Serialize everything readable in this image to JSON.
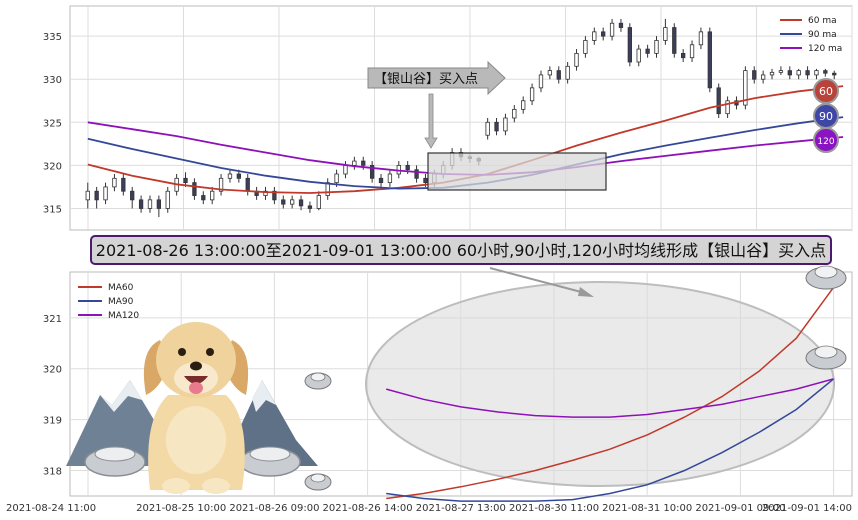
{
  "chart_data": [
    {
      "type": "candlestick",
      "legend": [
        {
          "name": "60 ma",
          "color": "#c0392b"
        },
        {
          "name": "90 ma",
          "color": "#34489a"
        },
        {
          "name": "120 ma",
          "color": "#8e10b8"
        }
      ],
      "yticks": [
        315,
        320,
        325,
        330,
        335
      ],
      "ylim": [
        312.5,
        338.5
      ],
      "grid": true,
      "legend_position": "top-right",
      "callout_label": "【银山谷】买入点",
      "badges": [
        "60",
        "90",
        "120"
      ],
      "ma60": [
        [
          0,
          320.1
        ],
        [
          10,
          318.8
        ],
        [
          20,
          317.8
        ],
        [
          30,
          317.2
        ],
        [
          40,
          316.9
        ],
        [
          50,
          316.8
        ],
        [
          60,
          317.0
        ],
        [
          70,
          317.4
        ],
        [
          80,
          318.0
        ],
        [
          90,
          319.0
        ],
        [
          100,
          320.6
        ],
        [
          110,
          322.3
        ],
        [
          120,
          323.8
        ],
        [
          130,
          325.2
        ],
        [
          140,
          326.7
        ],
        [
          150,
          327.8
        ],
        [
          160,
          328.6
        ],
        [
          170,
          329.2
        ]
      ],
      "ma90": [
        [
          0,
          323.1
        ],
        [
          10,
          321.9
        ],
        [
          20,
          320.8
        ],
        [
          30,
          319.7
        ],
        [
          40,
          318.8
        ],
        [
          50,
          318.1
        ],
        [
          60,
          317.6
        ],
        [
          70,
          317.3
        ],
        [
          80,
          317.4
        ],
        [
          90,
          318.0
        ],
        [
          100,
          318.9
        ],
        [
          110,
          320.1
        ],
        [
          120,
          321.3
        ],
        [
          130,
          322.3
        ],
        [
          140,
          323.2
        ],
        [
          150,
          324.1
        ],
        [
          160,
          324.9
        ],
        [
          170,
          325.6
        ]
      ],
      "ma120": [
        [
          0,
          325.0
        ],
        [
          10,
          324.2
        ],
        [
          20,
          323.4
        ],
        [
          30,
          322.4
        ],
        [
          40,
          321.5
        ],
        [
          50,
          320.6
        ],
        [
          60,
          319.9
        ],
        [
          70,
          319.4
        ],
        [
          80,
          319.0
        ],
        [
          90,
          318.9
        ],
        [
          100,
          319.2
        ],
        [
          110,
          319.8
        ],
        [
          120,
          320.5
        ],
        [
          130,
          321.1
        ],
        [
          140,
          321.7
        ],
        [
          150,
          322.3
        ],
        [
          160,
          322.8
        ],
        [
          170,
          323.3
        ]
      ],
      "candles": [
        [
          0,
          316,
          317,
          315,
          318
        ],
        [
          2,
          317,
          316,
          315,
          317.5
        ],
        [
          4,
          316,
          317.5,
          315.5,
          318
        ],
        [
          6,
          317.5,
          318.5,
          317,
          319
        ],
        [
          8,
          318.5,
          317,
          316.5,
          319
        ],
        [
          10,
          317,
          316,
          315,
          317.5
        ],
        [
          12,
          316,
          315,
          314.5,
          316.5
        ],
        [
          14,
          315,
          316,
          314.5,
          316.5
        ],
        [
          16,
          316,
          315,
          314,
          316.5
        ],
        [
          18,
          315,
          317,
          314.5,
          317.5
        ],
        [
          20,
          317,
          318.5,
          316.5,
          319
        ],
        [
          22,
          318.5,
          318,
          317.5,
          319.2
        ],
        [
          24,
          318,
          316.5,
          316,
          318.5
        ],
        [
          26,
          316.5,
          316,
          315.5,
          317
        ],
        [
          28,
          316,
          317,
          315.5,
          317.5
        ],
        [
          30,
          317,
          318.5,
          316.5,
          319
        ],
        [
          32,
          318.5,
          319,
          318,
          319.5
        ],
        [
          34,
          319,
          318.5,
          318,
          319.5
        ],
        [
          36,
          318.5,
          317,
          316.5,
          319
        ],
        [
          38,
          317,
          316.5,
          316,
          317.5
        ],
        [
          40,
          316.5,
          317,
          316,
          317.5
        ],
        [
          42,
          317,
          316,
          315.5,
          317.5
        ],
        [
          44,
          316,
          315.5,
          315,
          316.5
        ],
        [
          46,
          315.5,
          316,
          315,
          316.5
        ],
        [
          48,
          316,
          315.3,
          314.8,
          316.5
        ],
        [
          50,
          315.3,
          315,
          314.5,
          315.8
        ],
        [
          52,
          315,
          316.5,
          314.8,
          317
        ],
        [
          54,
          316.5,
          318,
          316,
          318.5
        ],
        [
          56,
          318,
          319,
          317.5,
          319.5
        ],
        [
          58,
          319,
          320,
          318.5,
          320.5
        ],
        [
          60,
          320,
          320.5,
          319.5,
          321
        ],
        [
          62,
          320.5,
          320,
          319.5,
          321
        ],
        [
          64,
          320,
          318.5,
          318,
          320.5
        ],
        [
          66,
          318.5,
          318,
          317.5,
          319
        ],
        [
          68,
          318,
          319,
          317.5,
          319.5
        ],
        [
          70,
          319,
          320,
          318.5,
          320.5
        ],
        [
          72,
          320,
          319.5,
          319,
          320.5
        ],
        [
          74,
          319.5,
          318.5,
          318,
          320
        ],
        [
          76,
          318.5,
          318,
          317.5,
          319
        ],
        [
          78,
          318,
          319,
          317.5,
          319.5
        ],
        [
          80,
          319,
          320,
          318.5,
          320.5
        ],
        [
          82,
          320,
          321.5,
          319.5,
          322
        ],
        [
          84,
          321.5,
          321,
          320.5,
          322
        ],
        [
          86,
          321,
          320.8,
          320.3,
          321.3
        ],
        [
          88,
          320.8,
          320.5,
          320,
          321
        ],
        [
          90,
          323.5,
          325,
          323,
          325.5
        ],
        [
          92,
          325,
          324,
          323.5,
          325.5
        ],
        [
          94,
          324,
          325.5,
          323.5,
          326
        ],
        [
          96,
          325.5,
          326.5,
          325,
          327
        ],
        [
          98,
          326.5,
          327.5,
          326,
          328
        ],
        [
          100,
          327.5,
          329,
          327,
          329.5
        ],
        [
          102,
          329,
          330.5,
          328.5,
          331
        ],
        [
          104,
          330.5,
          331,
          330,
          331.5
        ],
        [
          106,
          331,
          330,
          329.5,
          331.5
        ],
        [
          108,
          330,
          331.5,
          329.5,
          332
        ],
        [
          110,
          331.5,
          333,
          331,
          333.5
        ],
        [
          112,
          333,
          334.5,
          332.5,
          335
        ],
        [
          114,
          334.5,
          335.5,
          334,
          336
        ],
        [
          116,
          335.5,
          335,
          334.5,
          336
        ],
        [
          118,
          335,
          336.5,
          334.5,
          337
        ],
        [
          120,
          336.5,
          336,
          335.5,
          337
        ],
        [
          122,
          336,
          332,
          331.5,
          336.5
        ],
        [
          124,
          332,
          333.5,
          331.5,
          334
        ],
        [
          126,
          333.5,
          333,
          332.5,
          334
        ],
        [
          128,
          333,
          334.5,
          332.5,
          335
        ],
        [
          130,
          334.5,
          336,
          334,
          337
        ],
        [
          132,
          336,
          333,
          332.5,
          336.5
        ],
        [
          134,
          333,
          332.5,
          332,
          333.5
        ],
        [
          136,
          332.5,
          334,
          332,
          334.5
        ],
        [
          138,
          334,
          335.5,
          333.5,
          336
        ],
        [
          140,
          335.5,
          329,
          328.5,
          336
        ],
        [
          142,
          329,
          326,
          325.5,
          329.5
        ],
        [
          144,
          326,
          327.5,
          325.5,
          328
        ],
        [
          146,
          327.5,
          327,
          326.5,
          328
        ],
        [
          148,
          327,
          331,
          326.5,
          331.5
        ],
        [
          150,
          331,
          330,
          329.5,
          331.5
        ],
        [
          152,
          330,
          330.5,
          329.5,
          331
        ],
        [
          154,
          330.5,
          330.8,
          330,
          331.2
        ],
        [
          156,
          330.8,
          331,
          330.5,
          331.5
        ],
        [
          158,
          331,
          330.5,
          330,
          331.5
        ],
        [
          160,
          330.5,
          331,
          330,
          331.2
        ],
        [
          162,
          331,
          330.5,
          330,
          331.5
        ],
        [
          164,
          330.5,
          331,
          330,
          331.2
        ],
        [
          166,
          331,
          330.7,
          330.3,
          331.2
        ],
        [
          168,
          330.7,
          330.5,
          330,
          331
        ]
      ],
      "xlim": [
        -4,
        172
      ]
    },
    {
      "type": "line",
      "title": "2021-08-26 13:00:00至2021-09-01 13:00:00 60小时,90小时,120小时均线形成【银山谷】买入点",
      "xlabels": [
        "2021-08-24 11:00",
        "2021-08-25 10:00",
        "2021-08-26 09:00",
        "2021-08-26 14:00",
        "2021-08-27 13:00",
        "2021-08-30 11:00",
        "2021-08-31 10:00",
        "2021-09-01 09:00",
        "2021-09-01 14:00"
      ],
      "yticks": [
        318,
        319,
        320,
        321
      ],
      "ylim": [
        317.5,
        321.9
      ],
      "xlim": [
        0,
        8.2
      ],
      "grid": true,
      "legend_position": "top-left",
      "series": [
        {
          "name": "MA60",
          "color": "#c0392b",
          "x": [
            3.2,
            3.6,
            4.0,
            4.4,
            4.8,
            5.2,
            5.6,
            6.0,
            6.4,
            6.8,
            7.2,
            7.6,
            8.0
          ],
          "y": [
            317.45,
            317.55,
            317.68,
            317.83,
            318.0,
            318.2,
            318.42,
            318.7,
            319.05,
            319.45,
            319.95,
            320.6,
            321.6
          ]
        },
        {
          "name": "MA90",
          "color": "#34489a",
          "x": [
            3.2,
            3.6,
            4.0,
            4.4,
            4.8,
            5.2,
            5.6,
            6.0,
            6.4,
            6.8,
            7.2,
            7.6,
            8.0
          ],
          "y": [
            317.55,
            317.45,
            317.4,
            317.4,
            317.4,
            317.43,
            317.55,
            317.72,
            318.0,
            318.35,
            318.75,
            319.2,
            319.8
          ]
        },
        {
          "name": "MA120",
          "color": "#8e10b8",
          "x": [
            3.2,
            3.6,
            4.0,
            4.4,
            4.8,
            5.2,
            5.6,
            6.0,
            6.4,
            6.8,
            7.2,
            7.6,
            8.0
          ],
          "y": [
            319.6,
            319.4,
            319.25,
            319.15,
            319.08,
            319.05,
            319.05,
            319.1,
            319.2,
            319.3,
            319.45,
            319.6,
            319.8
          ]
        }
      ]
    }
  ]
}
